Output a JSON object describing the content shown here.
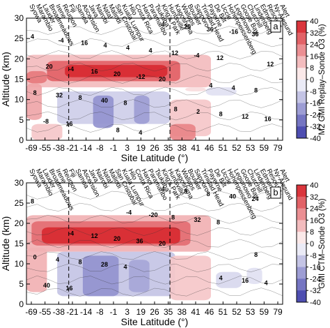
{
  "chart_data": [
    {
      "type": "heatmap",
      "panel_label": "a",
      "xlabel": "Site Latitude (°)",
      "ylabel": "Altitude (km)",
      "colorbar_label": "M2 GMI Replay–Sonde O3 (%)",
      "x_tick_labels": [
        "-69",
        "-55",
        "-38",
        "-21",
        "-14",
        "-8",
        "-1",
        "3",
        "19",
        "26",
        "35",
        "38",
        "41",
        "46",
        "51",
        "52",
        "53",
        "59",
        "79"
      ],
      "ylim": [
        0,
        30
      ],
      "y_ticks": [
        0,
        5,
        10,
        15,
        20,
        25,
        30
      ],
      "colorbar_ticks": [
        40,
        32,
        24,
        16,
        8,
        0,
        -8,
        -16,
        -24,
        -32,
        -40
      ],
      "colorbar_range": [
        -40,
        40
      ],
      "contour_labels": [
        "4",
        "8",
        "12",
        "16",
        "20",
        "36",
        "40",
        "-4",
        "-8",
        "-12",
        "-16",
        "8",
        "12",
        "16",
        "20",
        "36",
        "32",
        "4",
        "12",
        "16",
        "20",
        "8",
        "4",
        "8",
        "-4",
        "4",
        "8",
        "4",
        "2",
        "20",
        "4",
        "4",
        "16",
        "8",
        "12",
        "8",
        "4",
        "-4"
      ],
      "site_names": [
        "Syowa",
        "Marambio",
        "Lauder",
        "Broadmeadows",
        "Irene",
        "Reunion",
        "Fiji",
        "Samoa",
        "Ascension",
        "Java",
        "Nairobi",
        "Natal",
        "Malindi",
        "San Cristobal",
        "Kuala Lumpur",
        "Hilo",
        "Costa Rica",
        "Hanoi",
        "Paramaribo",
        "Tsukuba",
        "King's Park",
        "Huntsville",
        "Kagoshima",
        "Wallops",
        "Boulder",
        "Sapporo",
        "Trinidad Head",
        "Payerne",
        "De Bilt",
        "Uccle",
        "Hohenpeissenberg",
        "Legionowo",
        "Goose Bay",
        "Churchill",
        "Lindenberg",
        "Edmonton",
        "Resolute",
        "Ny-Ålesund",
        "Alert"
      ]
    },
    {
      "type": "heatmap",
      "panel_label": "b",
      "xlabel": "Site Latitude (°)",
      "ylabel": "Altitude (km)",
      "colorbar_label": "GMI CTM–Sonde O3 (%)",
      "x_tick_labels": [
        "-69",
        "-55",
        "-38",
        "-21",
        "-14",
        "-8",
        "-1",
        "3",
        "19",
        "26",
        "35",
        "38",
        "41",
        "46",
        "51",
        "52",
        "53",
        "59",
        "79"
      ],
      "ylim": [
        0,
        30
      ],
      "y_ticks": [
        0,
        5,
        10,
        15,
        20,
        25,
        30
      ],
      "colorbar_ticks": [
        40,
        32,
        24,
        16,
        8,
        0,
        -8,
        -16,
        -24,
        -32,
        -40
      ],
      "colorbar_range": [
        -40,
        40
      ],
      "contour_labels": [
        "8",
        "4",
        "8",
        "16",
        "20",
        "24",
        "28",
        "32",
        "40",
        "36",
        "40",
        "8",
        "8",
        "4",
        "20",
        "8",
        "4",
        "-20",
        "16",
        "12",
        "8",
        "0",
        "-4",
        "4",
        "-4",
        "4",
        "8"
      ],
      "site_names": [
        "Syowa",
        "Marambio",
        "Lauder",
        "Broadmeadows",
        "Irene",
        "Reunion",
        "Fiji",
        "Samoa",
        "Ascension",
        "Java",
        "Nairobi",
        "Natal",
        "Malindi",
        "San Cristobal",
        "Kuala Lumpur",
        "Hilo",
        "Costa Rica",
        "Hanoi",
        "Paramaribo",
        "Tsukuba",
        "King's Park",
        "Huntsville",
        "Kagoshima",
        "Wallops",
        "Boulder",
        "Sapporo",
        "Trinidad Head",
        "Payerne",
        "De Bilt",
        "Uccle",
        "Hohenpeissenberg",
        "Legionowo",
        "Goose Bay",
        "Churchill",
        "Lindenberg",
        "Edmonton",
        "Resolute",
        "Ny-Ålesund",
        "Alert"
      ]
    }
  ],
  "colors": {
    "neg_max": "#3a3aa8",
    "neutral": "#ffffff",
    "pos_max": "#d61f26"
  }
}
